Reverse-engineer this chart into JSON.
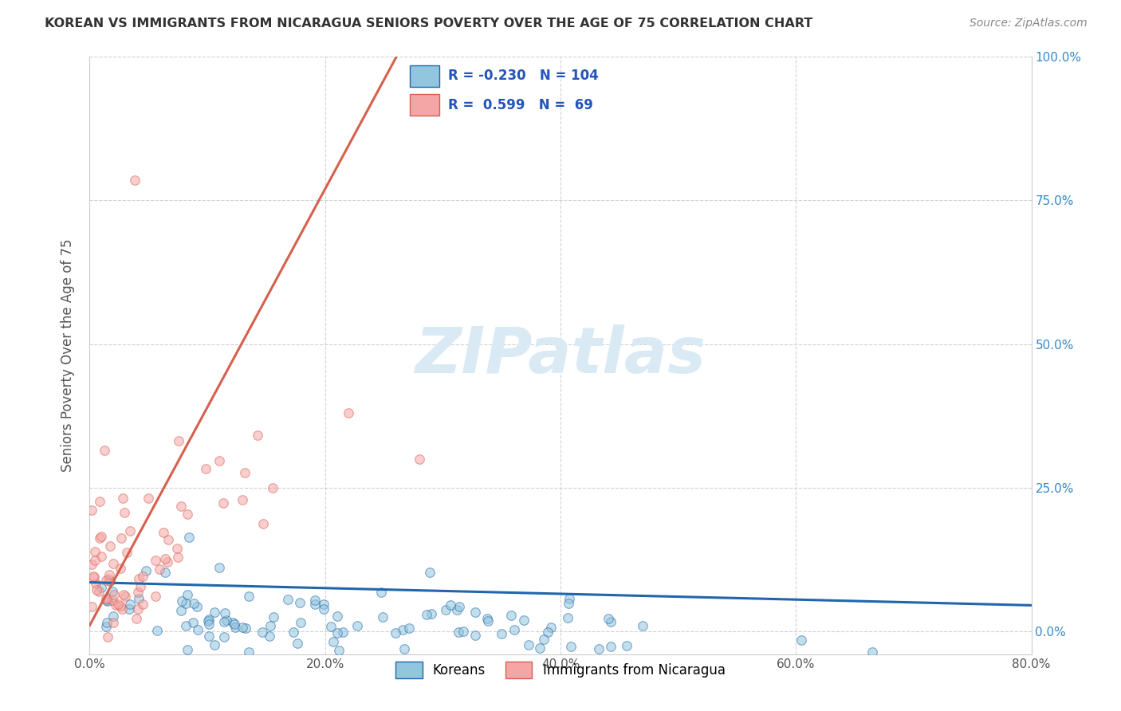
{
  "title": "KOREAN VS IMMIGRANTS FROM NICARAGUA SENIORS POVERTY OVER THE AGE OF 75 CORRELATION CHART",
  "source": "Source: ZipAtlas.com",
  "ylabel": "Seniors Poverty Over the Age of 75",
  "xlabel": "",
  "xlim": [
    0.0,
    0.8
  ],
  "ylim": [
    -0.04,
    1.0
  ],
  "ylim_data": [
    0.0,
    1.0
  ],
  "xticks": [
    0.0,
    0.2,
    0.4,
    0.6,
    0.8
  ],
  "yticks": [
    0.0,
    0.25,
    0.5,
    0.75,
    1.0
  ],
  "xticklabels": [
    "0.0%",
    "20.0%",
    "40.0%",
    "60.0%",
    "80.0%"
  ],
  "yticklabels_right": [
    "0.0%",
    "25.0%",
    "50.0%",
    "75.0%",
    "100.0%"
  ],
  "korean_R": -0.23,
  "korean_N": 104,
  "nicaragua_R": 0.599,
  "nicaragua_N": 69,
  "korean_color": "#92c5de",
  "korean_color_dark": "#2166ac",
  "nicaragua_color": "#f4a6a6",
  "nicaragua_color_dark": "#d6604d",
  "background_color": "#ffffff",
  "grid_color": "#cccccc",
  "title_color": "#333333",
  "watermark_color": "#daeaf5",
  "legend_label_korean": "Koreans",
  "legend_label_nicaragua": "Immigrants from Nicaragua"
}
